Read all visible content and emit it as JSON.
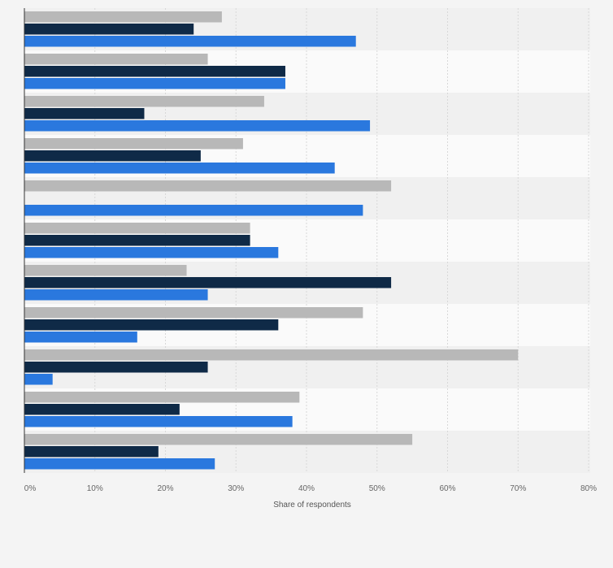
{
  "chart_data": {
    "type": "bar",
    "orientation": "horizontal",
    "categories": [
      "",
      "",
      "",
      "",
      "",
      "",
      "",
      "",
      "",
      "",
      ""
    ],
    "series": [
      {
        "color": "#b8b8b8",
        "values": [
          28,
          26,
          34,
          31,
          52,
          32,
          23,
          48,
          70,
          39,
          55
        ]
      },
      {
        "color": "#0f2a47",
        "values": [
          24,
          37,
          17,
          25,
          0,
          32,
          52,
          36,
          26,
          22,
          19
        ]
      },
      {
        "color": "#2a78de",
        "values": [
          47,
          37,
          49,
          44,
          48,
          36,
          26,
          16,
          4,
          38,
          27
        ]
      }
    ],
    "xlabel": "Share of respondents",
    "xlim": [
      0,
      80
    ],
    "xticks": [
      "0%",
      "10%",
      "20%",
      "30%",
      "40%",
      "50%",
      "60%",
      "70%",
      "80%"
    ],
    "grid": true,
    "legend": "none"
  }
}
